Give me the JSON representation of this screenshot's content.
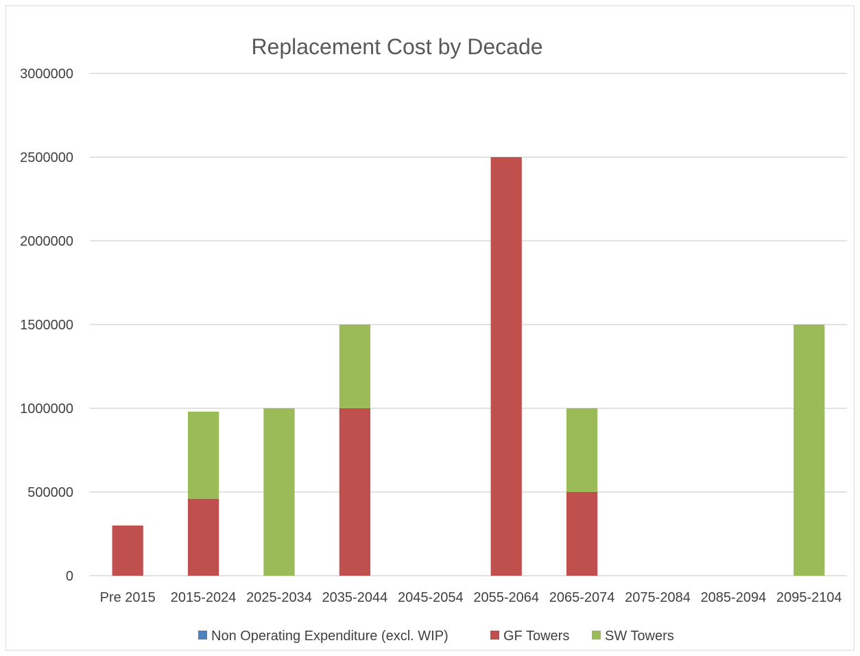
{
  "chart_data": {
    "type": "bar",
    "stacked": true,
    "title": "Replacement Cost by Decade",
    "xlabel": "",
    "ylabel": "",
    "categories": [
      "Pre 2015",
      "2015-2024",
      "2025-2034",
      "2035-2044",
      "2045-2054",
      "2055-2064",
      "2065-2074",
      "2075-2084",
      "2085-2094",
      "2095-2104"
    ],
    "series": [
      {
        "name": "Non Operating Expenditure (excl. WIP)",
        "color": "#4f81bd",
        "values": [
          0,
          0,
          0,
          0,
          0,
          0,
          0,
          0,
          0,
          0
        ]
      },
      {
        "name": "GF Towers",
        "color": "#c0504d",
        "values": [
          300000,
          460000,
          0,
          1000000,
          0,
          2500000,
          500000,
          0,
          0,
          0
        ]
      },
      {
        "name": "SW Towers",
        "color": "#9bbb59",
        "values": [
          0,
          520000,
          1000000,
          500000,
          0,
          0,
          500000,
          0,
          0,
          1500000
        ]
      }
    ],
    "ylim": [
      0,
      3000000
    ],
    "yticks": [
      "0",
      "500000",
      "1000000",
      "1500000",
      "2000000",
      "2500000",
      "3000000"
    ],
    "grid": true,
    "legend_position": "bottom"
  }
}
